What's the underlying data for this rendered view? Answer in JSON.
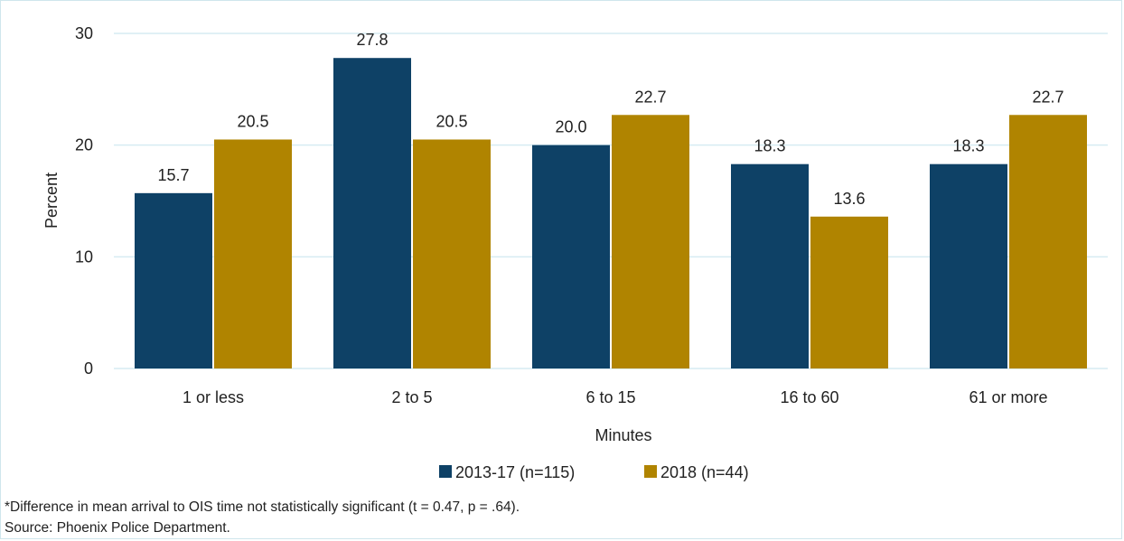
{
  "chart_data": {
    "type": "bar",
    "categories": [
      "1 or less",
      "2 to 5",
      "6 to 15",
      "16 to 60",
      "61 or more"
    ],
    "series": [
      {
        "name": "2013-17 (n=115)",
        "color": "#0e4166",
        "values": [
          15.7,
          27.8,
          20.0,
          18.3,
          18.3
        ],
        "labels": [
          "15.7",
          "27.8",
          "20.0",
          "18.3",
          "18.3"
        ]
      },
      {
        "name": "2018 (n=44)",
        "color": "#b08400",
        "values": [
          20.5,
          20.5,
          22.7,
          13.6,
          22.7
        ],
        "labels": [
          "20.5",
          "20.5",
          "22.7",
          "13.6",
          "22.7"
        ]
      }
    ],
    "xlabel": "Minutes",
    "ylabel": "Percent",
    "ylim": [
      0,
      30
    ],
    "yticks": [
      0,
      10,
      20,
      30
    ],
    "grid": true,
    "gridline_color": "#d6ecf2",
    "legend": "bottom"
  },
  "notes": {
    "footnote": "*Difference in mean arrival to OIS time not statistically significant (t = 0.47, p = .64).",
    "source": "Source: Phoenix Police Department."
  }
}
